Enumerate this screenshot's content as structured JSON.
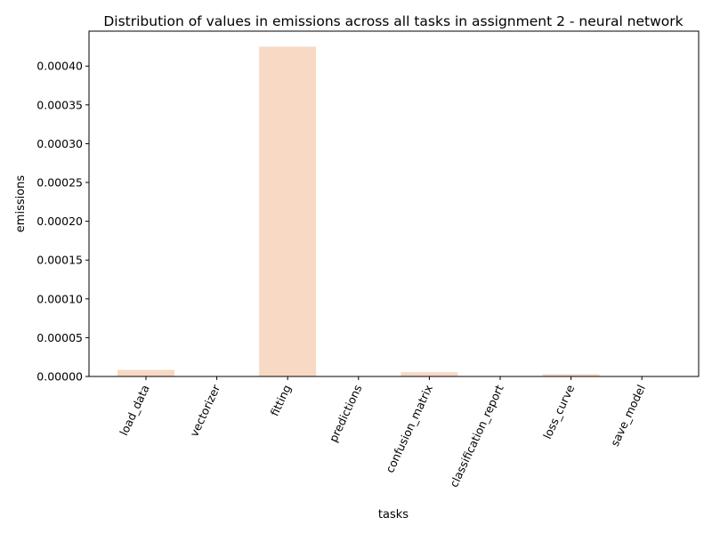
{
  "chart_data": {
    "type": "bar",
    "title": "Distribution of values in emissions across all tasks in assignment 2 - neural network",
    "xlabel": "tasks",
    "ylabel": "emissions",
    "categories": [
      "load_data",
      "vectorizer",
      "fitting",
      "predictions",
      "confusion_matrix",
      "classification_report",
      "loss_curve",
      "save_model"
    ],
    "values": [
      8.5e-06,
      2e-07,
      0.000425,
      1e-07,
      5.5e-06,
      1e-07,
      3e-06,
      2e-07
    ],
    "ylim": [
      0,
      0.000445
    ],
    "yticks": [
      0,
      5e-05,
      0.0001,
      0.00015,
      0.0002,
      0.00025,
      0.0003,
      0.00035,
      0.0004
    ],
    "ytick_labels": [
      "0.00000",
      "0.00005",
      "0.00010",
      "0.00015",
      "0.00020",
      "0.00025",
      "0.00030",
      "0.00035",
      "0.00040"
    ],
    "bar_color": "#f7d9c4",
    "grid": false,
    "legend": false
  }
}
